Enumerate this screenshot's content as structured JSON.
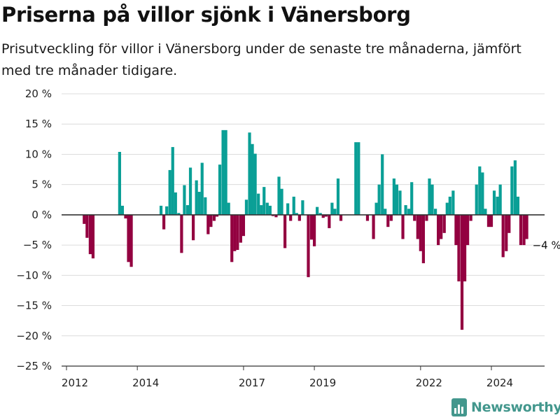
{
  "title": "Priserna på villor sjönk i Vänersborg",
  "subtitle": "Prisutveckling för villor i Vänersborg under de senaste tre månaderna, jämfört med tre månader tidigare.",
  "brand": {
    "name": "Newsworthy",
    "icon": "bar-chart-logo-icon"
  },
  "colors": {
    "positive": "#0a9f96",
    "negative": "#930040",
    "grid": "#dcdcdc",
    "zero": "#333333"
  },
  "chart_data": {
    "type": "bar",
    "ylim": [
      -25,
      20
    ],
    "yticks": [
      20,
      15,
      10,
      5,
      0,
      -5,
      -10,
      -15,
      -20,
      -25
    ],
    "ytick_labels": [
      "20 %",
      "15 %",
      "10 %",
      "5 %",
      "0 %",
      "−5 %",
      "−10 %",
      "−15 %",
      "−20 %",
      "−25 %"
    ],
    "xticks": [
      2012,
      2014,
      2017,
      2019,
      2022,
      2024
    ],
    "xlim": [
      2012,
      2025.6
    ],
    "grid": true,
    "end_label": "−4 %",
    "series": [
      {
        "values": [
          [
            2012.5,
            -1.5
          ],
          [
            2012.58,
            -3.8
          ],
          [
            2012.67,
            -6.5
          ],
          [
            2012.75,
            -7.2
          ],
          [
            2013.5,
            10.4
          ],
          [
            2013.58,
            1.5
          ],
          [
            2013.67,
            -0.6
          ],
          [
            2013.75,
            -7.8
          ],
          [
            2013.83,
            -8.6
          ],
          [
            2014.67,
            1.5
          ],
          [
            2014.75,
            -2.4
          ],
          [
            2014.83,
            1.4
          ],
          [
            2014.92,
            7.4
          ],
          [
            2015.0,
            11.2
          ],
          [
            2015.08,
            3.7
          ],
          [
            2015.17,
            0.3
          ],
          [
            2015.25,
            -6.3
          ],
          [
            2015.33,
            4.9
          ],
          [
            2015.42,
            1.6
          ],
          [
            2015.5,
            7.8
          ],
          [
            2015.58,
            -4.2
          ],
          [
            2015.67,
            5.7
          ],
          [
            2015.75,
            3.8
          ],
          [
            2015.83,
            8.6
          ],
          [
            2015.92,
            2.9
          ],
          [
            2016.0,
            -3.2
          ],
          [
            2016.08,
            -2.0
          ],
          [
            2016.17,
            -1.0
          ],
          [
            2016.25,
            -0.3
          ],
          [
            2016.33,
            8.3
          ],
          [
            2016.42,
            14.0
          ],
          [
            2016.5,
            14.0
          ],
          [
            2016.58,
            2.0
          ],
          [
            2016.67,
            -7.8
          ],
          [
            2016.75,
            -6.0
          ],
          [
            2016.83,
            -5.8
          ],
          [
            2016.92,
            -4.6
          ],
          [
            2017.0,
            -3.5
          ],
          [
            2017.08,
            2.5
          ],
          [
            2017.17,
            13.6
          ],
          [
            2017.25,
            11.7
          ],
          [
            2017.33,
            10.1
          ],
          [
            2017.42,
            3.5
          ],
          [
            2017.5,
            1.6
          ],
          [
            2017.58,
            4.6
          ],
          [
            2017.67,
            2.0
          ],
          [
            2017.75,
            1.5
          ],
          [
            2017.83,
            -0.2
          ],
          [
            2017.92,
            -0.4
          ],
          [
            2018.0,
            6.3
          ],
          [
            2018.08,
            4.3
          ],
          [
            2018.17,
            -5.5
          ],
          [
            2018.25,
            1.9
          ],
          [
            2018.33,
            -1.0
          ],
          [
            2018.42,
            3.0
          ],
          [
            2018.5,
            0.3
          ],
          [
            2018.58,
            -1.0
          ],
          [
            2018.67,
            2.4
          ],
          [
            2018.75,
            0.0
          ],
          [
            2018.83,
            -10.3
          ],
          [
            2018.92,
            -4.1
          ],
          [
            2019.0,
            -5.2
          ],
          [
            2019.08,
            1.3
          ],
          [
            2019.17,
            0.3
          ],
          [
            2019.25,
            -0.5
          ],
          [
            2019.33,
            -0.3
          ],
          [
            2019.42,
            -2.2
          ],
          [
            2019.5,
            2.0
          ],
          [
            2019.58,
            1.0
          ],
          [
            2019.67,
            6.0
          ],
          [
            2019.75,
            -1.0
          ],
          [
            2020.17,
            12.0
          ],
          [
            2020.25,
            12.0
          ],
          [
            2020.5,
            -1.0
          ],
          [
            2020.67,
            -4.0
          ],
          [
            2020.75,
            2.0
          ],
          [
            2020.83,
            5.0
          ],
          [
            2020.92,
            10.0
          ],
          [
            2021.0,
            1.0
          ],
          [
            2021.08,
            -2.0
          ],
          [
            2021.17,
            -1.0
          ],
          [
            2021.25,
            6.0
          ],
          [
            2021.33,
            5.0
          ],
          [
            2021.42,
            4.0
          ],
          [
            2021.5,
            -4.0
          ],
          [
            2021.58,
            1.6
          ],
          [
            2021.67,
            1.0
          ],
          [
            2021.75,
            5.4
          ],
          [
            2021.83,
            -1.0
          ],
          [
            2021.92,
            -4.0
          ],
          [
            2022.0,
            -6.0
          ],
          [
            2022.08,
            -8.0
          ],
          [
            2022.17,
            -1.0
          ],
          [
            2022.25,
            6.0
          ],
          [
            2022.33,
            5.0
          ],
          [
            2022.42,
            1.0
          ],
          [
            2022.5,
            -5.0
          ],
          [
            2022.58,
            -4.0
          ],
          [
            2022.67,
            -3.0
          ],
          [
            2022.75,
            2.0
          ],
          [
            2022.83,
            3.0
          ],
          [
            2022.92,
            4.0
          ],
          [
            2023.0,
            -5.0
          ],
          [
            2023.08,
            -11.0
          ],
          [
            2023.17,
            -19.0
          ],
          [
            2023.25,
            -11.0
          ],
          [
            2023.33,
            -5.0
          ],
          [
            2023.42,
            -1.0
          ],
          [
            2023.58,
            5.0
          ],
          [
            2023.67,
            8.0
          ],
          [
            2023.75,
            7.0
          ],
          [
            2023.83,
            1.0
          ],
          [
            2023.92,
            -2.0
          ],
          [
            2024.0,
            -2.0
          ],
          [
            2024.08,
            4.0
          ],
          [
            2024.17,
            3.0
          ],
          [
            2024.25,
            5.0
          ],
          [
            2024.33,
            -7.0
          ],
          [
            2024.42,
            -6.0
          ],
          [
            2024.5,
            -3.0
          ],
          [
            2024.58,
            8.0
          ],
          [
            2024.67,
            9.0
          ],
          [
            2024.75,
            3.0
          ],
          [
            2024.83,
            -5.0
          ],
          [
            2024.92,
            -5.0
          ],
          [
            2025.0,
            -4.0
          ]
        ]
      }
    ]
  }
}
